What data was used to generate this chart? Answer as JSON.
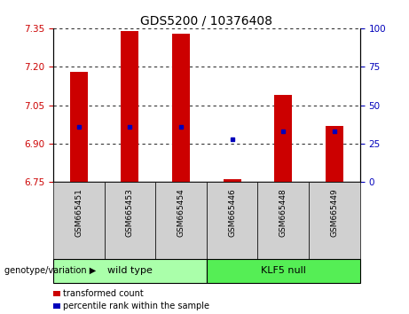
{
  "title": "GDS5200 / 10376408",
  "samples": [
    "GSM665451",
    "GSM665453",
    "GSM665454",
    "GSM665446",
    "GSM665448",
    "GSM665449"
  ],
  "transformed_counts": [
    7.18,
    7.34,
    7.33,
    6.76,
    7.09,
    6.97
  ],
  "percentile_ranks": [
    36,
    36,
    36,
    28,
    33,
    33
  ],
  "ylim": [
    6.75,
    7.35
  ],
  "yticks": [
    6.75,
    6.9,
    7.05,
    7.2,
    7.35
  ],
  "right_yticks": [
    0,
    25,
    50,
    75,
    100
  ],
  "bar_color": "#cc0000",
  "dot_color": "#0000bb",
  "bar_width": 0.35,
  "baseline": 6.75,
  "title_fontsize": 10,
  "tick_fontsize": 7.5,
  "left_tick_color": "#cc0000",
  "right_tick_color": "#0000bb",
  "wt_color": "#aaffaa",
  "klf_color": "#55ee55",
  "legend_red_label": "transformed count",
  "legend_blue_label": "percentile rank within the sample",
  "genotype_label": "genotype/variation"
}
